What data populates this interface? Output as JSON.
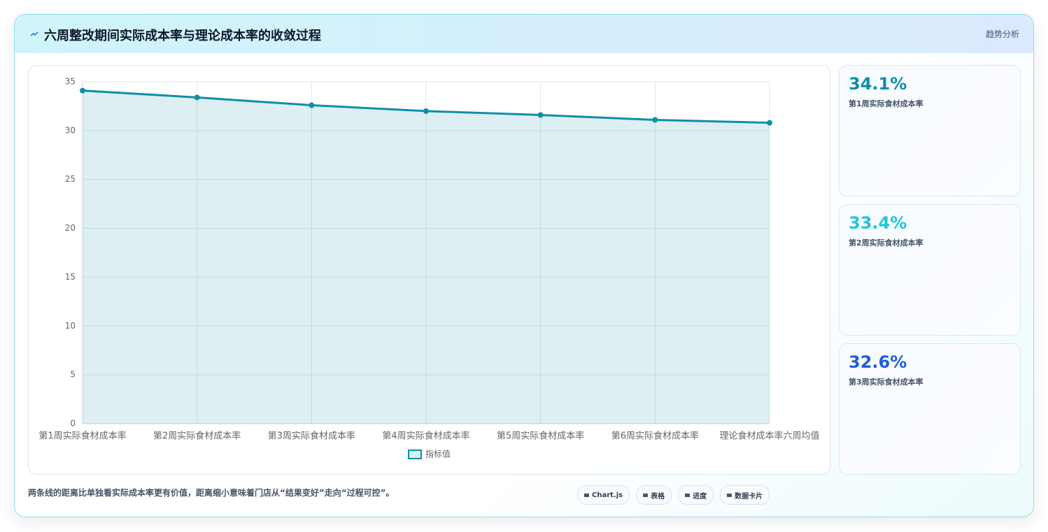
{
  "header": {
    "title": "六周整改期间实际成本率与理论成本率的收敛过程",
    "tag": "趋势分析"
  },
  "chart_data": {
    "type": "line",
    "categories": [
      "第1周实际食材成本率",
      "第2周实际食材成本率",
      "第3周实际食材成本率",
      "第4周实际食材成本率",
      "第5周实际食材成本率",
      "第6周实际食材成本率",
      "理论食材成本率六周均值"
    ],
    "series": [
      {
        "name": "指标值",
        "color": "#0e8fa8",
        "values": [
          34.1,
          33.4,
          32.6,
          32.0,
          31.6,
          31.1,
          30.8
        ]
      }
    ],
    "ylim": [
      0,
      35
    ],
    "yticks": [
      0,
      5,
      10,
      15,
      20,
      25,
      30,
      35
    ],
    "grid": true,
    "fill": true,
    "legend": "bottom"
  },
  "cards": [
    {
      "value": "34.1%",
      "label": "第1周实际食材成本率",
      "color": "#0e8fa8"
    },
    {
      "value": "33.4%",
      "label": "第2周实际食材成本率",
      "color": "#22c5dc"
    },
    {
      "value": "32.6%",
      "label": "第3周实际食材成本率",
      "color": "#1d5fd6"
    }
  ],
  "footer": {
    "note": "两条线的距离比单独看实际成本率更有价值，距离缩小意味着门店从“结果变好”走向“过程可控”。",
    "buttons": [
      "Chart.js",
      "表格",
      "进度",
      "数据卡片"
    ]
  }
}
